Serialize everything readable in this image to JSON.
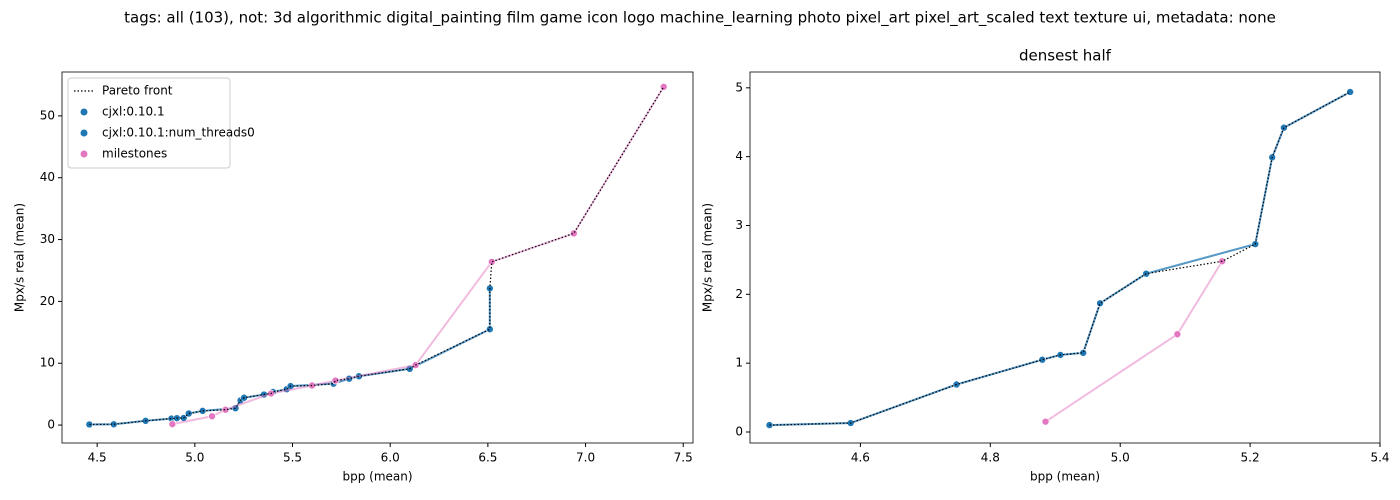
{
  "title": "tags: all (103), not: 3d algorithmic digital_painting film game icon logo machine_learning photo pixel_art pixel_art_scaled text texture ui, metadata: none",
  "chart_data": [
    {
      "type": "scatter",
      "xlabel": "bpp (mean)",
      "ylabel": "Mpx/s real (mean)",
      "xlim": [
        4.32,
        7.55
      ],
      "ylim": [
        -2.9,
        57.1
      ],
      "xticks": [
        4.5,
        {
          "value": 5.0,
          "label": "5.0"
        },
        5.5,
        {
          "value": 6.0,
          "label": "6.0"
        },
        6.5,
        {
          "value": 7.0,
          "label": "7.0"
        },
        7.5
      ],
      "yticks": [
        0,
        10,
        20,
        30,
        40,
        50
      ],
      "legend": "upper left",
      "series": [
        {
          "name": "Pareto front",
          "color": "#000000",
          "style": "dotted",
          "x": [
            4.46,
            4.585,
            4.748,
            4.88,
            4.908,
            4.943,
            4.969,
            5.04,
            5.157,
            5.208,
            5.234,
            5.252,
            5.354,
            5.39,
            5.4,
            5.47,
            5.49,
            5.6,
            5.71,
            5.72,
            5.79,
            5.84,
            6.1,
            6.13,
            6.51,
            6.51,
            6.52,
            6.94,
            7.4
          ],
          "values": [
            0.1,
            0.13,
            0.69,
            1.05,
            1.12,
            1.15,
            1.87,
            2.3,
            2.48,
            2.73,
            3.99,
            4.42,
            4.94,
            5.1,
            5.35,
            5.8,
            6.3,
            6.4,
            6.7,
            7.2,
            7.5,
            7.9,
            9.1,
            9.7,
            15.5,
            22.1,
            26.4,
            31.0,
            54.7
          ]
        },
        {
          "name": "cjxl:0.10.1",
          "color": "#1f77b4",
          "style": "markers-line",
          "x": [
            4.46,
            4.585,
            4.748,
            4.88,
            4.908,
            4.943,
            4.969,
            5.04,
            5.208,
            5.234,
            5.252,
            5.354,
            5.4,
            5.47,
            5.49,
            5.71,
            5.79,
            5.84,
            6.1,
            6.51,
            6.51
          ],
          "values": [
            0.1,
            0.13,
            0.69,
            1.05,
            1.12,
            1.15,
            1.87,
            2.3,
            2.73,
            3.99,
            4.42,
            4.94,
            5.35,
            5.8,
            6.3,
            6.7,
            7.5,
            7.9,
            9.1,
            15.5,
            22.1
          ]
        },
        {
          "name": "cjxl:0.10.1:num_threads0",
          "color": "#1f77b4",
          "style": "markers-line",
          "x": [
            4.46,
            4.585,
            4.748,
            4.88,
            4.908,
            4.943,
            4.969,
            5.04,
            5.208,
            5.234,
            5.252,
            5.354,
            5.4,
            5.47,
            5.49,
            5.71,
            5.79,
            5.84,
            6.1,
            6.51,
            6.51
          ],
          "values": [
            0.1,
            0.13,
            0.69,
            1.05,
            1.12,
            1.15,
            1.87,
            2.3,
            2.73,
            3.99,
            4.42,
            4.94,
            5.35,
            5.8,
            6.3,
            6.7,
            7.5,
            7.9,
            9.1,
            15.5,
            22.1
          ]
        },
        {
          "name": "milestones",
          "color": "#e377c2",
          "style": "markers-line",
          "x": [
            4.885,
            5.088,
            5.157,
            5.39,
            5.6,
            5.72,
            6.13,
            6.52,
            6.94,
            7.4
          ],
          "values": [
            0.15,
            1.42,
            2.48,
            5.1,
            6.4,
            7.2,
            9.7,
            26.4,
            31.0,
            54.7
          ]
        }
      ]
    },
    {
      "type": "scatter",
      "title": "densest half",
      "xlabel": "bpp (mean)",
      "ylabel": "Mpx/s real (mean)",
      "xlim": [
        4.43,
        5.4
      ],
      "ylim": [
        -0.16,
        5.23
      ],
      "xticks": [
        4.6,
        4.8,
        {
          "value": 5.0,
          "label": "5.0"
        },
        5.2,
        5.4
      ],
      "yticks": [
        0,
        1,
        2,
        3,
        4,
        5
      ],
      "series": [
        {
          "color": "#000000",
          "style": "dotted",
          "x": [
            4.46,
            4.585,
            4.748,
            4.88,
            4.908,
            4.943,
            4.969,
            5.04,
            5.157,
            5.208,
            5.234,
            5.252,
            5.354
          ],
          "values": [
            0.1,
            0.13,
            0.69,
            1.05,
            1.12,
            1.15,
            1.87,
            2.3,
            2.48,
            2.73,
            3.99,
            4.42,
            4.94
          ]
        },
        {
          "color": "#1f77b4",
          "style": "markers-line",
          "x": [
            4.46,
            4.585,
            4.748,
            4.88,
            4.908,
            4.943,
            4.969,
            5.04,
            5.208,
            5.234,
            5.252,
            5.354
          ],
          "values": [
            0.1,
            0.13,
            0.69,
            1.05,
            1.12,
            1.15,
            1.87,
            2.3,
            2.73,
            3.99,
            4.42,
            4.94
          ]
        },
        {
          "color": "#1f77b4",
          "style": "markers-line",
          "x": [
            4.46,
            4.585,
            4.748,
            4.88,
            4.908,
            4.943,
            4.969,
            5.04,
            5.208,
            5.234,
            5.252,
            5.354
          ],
          "values": [
            0.1,
            0.13,
            0.69,
            1.05,
            1.12,
            1.15,
            1.87,
            2.3,
            2.73,
            3.99,
            4.42,
            4.94
          ]
        },
        {
          "color": "#e377c2",
          "style": "markers-line",
          "x": [
            4.885,
            5.088,
            5.157
          ],
          "values": [
            0.15,
            1.42,
            2.48
          ]
        }
      ]
    }
  ]
}
